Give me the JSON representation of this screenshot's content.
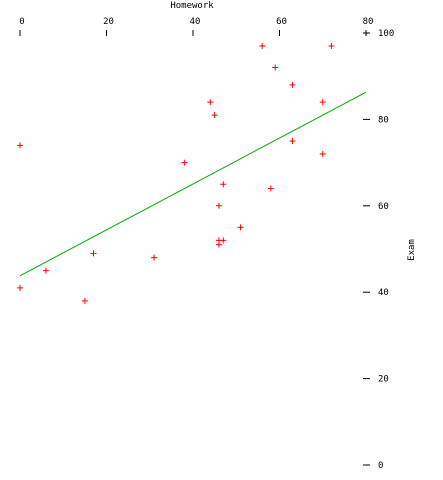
{
  "chart_data": {
    "type": "scatter",
    "xlabel": "Homework",
    "ylabel": "Exam",
    "xlim": [
      0,
      80
    ],
    "ylim": [
      0,
      100
    ],
    "xticks": [
      0,
      20,
      40,
      60,
      80
    ],
    "yticks": [
      0,
      20,
      40,
      60,
      80,
      100
    ],
    "series": [
      {
        "color": "#ff0000",
        "x": [
          0,
          0,
          6,
          15,
          17,
          31,
          38,
          44,
          45,
          46,
          47,
          46,
          46,
          47,
          51,
          56,
          58,
          59,
          63,
          63,
          70,
          70,
          72
        ],
        "values": [
          74,
          41,
          45,
          38,
          49,
          48,
          70,
          84,
          81,
          60,
          65,
          52,
          51,
          52,
          55,
          97,
          64,
          92,
          88,
          75,
          84,
          72,
          97
        ]
      }
    ],
    "trend_line": {
      "color": "#00aa00",
      "x": [
        0,
        80
      ],
      "values": [
        43.8,
        86.3
      ]
    }
  }
}
